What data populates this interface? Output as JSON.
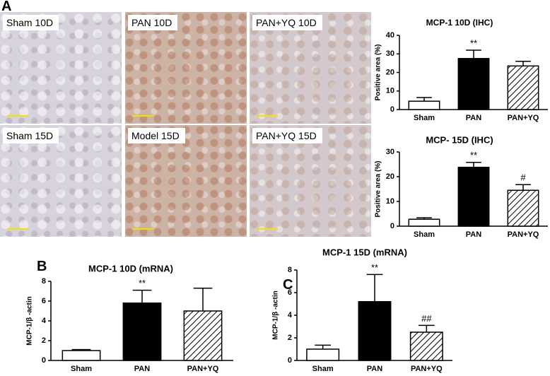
{
  "panel_labels": [
    "A",
    "B",
    "C"
  ],
  "micrographs": [
    "Sham 10D",
    "PAN 10D",
    "PAN+YQ 10D",
    "Sham 15D",
    "Model 15D",
    "PAN+YQ 15D"
  ],
  "chart_data": [
    {
      "type": "bar",
      "title": "MCP-1 10D (IHC)",
      "y_label": "Positive area (%)",
      "categories": [
        "Sham",
        "PAN",
        "PAN+YQ"
      ],
      "values": [
        4.5,
        27.5,
        23.5
      ],
      "errors": [
        2,
        4.5,
        2.5
      ],
      "colors": [
        "#ffffff",
        "#000000",
        "#ffffff"
      ],
      "hatch": [
        false,
        false,
        true
      ],
      "annotations": [
        {
          "category": "PAN",
          "text": "**"
        }
      ],
      "ylim": [
        0,
        40
      ],
      "yticks": [
        0,
        10,
        20,
        30,
        40
      ]
    },
    {
      "type": "bar",
      "title": "MCP- 15D (IHC)",
      "y_label": "Positive area (%)",
      "categories": [
        "Sham",
        "PAN",
        "PAN+YQ"
      ],
      "values": [
        2.8,
        23.8,
        14.5
      ],
      "errors": [
        0.6,
        2,
        2.3
      ],
      "colors": [
        "#ffffff",
        "#000000",
        "#ffffff"
      ],
      "hatch": [
        false,
        false,
        true
      ],
      "annotations": [
        {
          "category": "PAN",
          "text": "**"
        },
        {
          "category": "PAN+YQ",
          "text": "#"
        }
      ],
      "ylim": [
        0,
        30
      ],
      "yticks": [
        0,
        10,
        20,
        30
      ]
    },
    {
      "type": "bar",
      "title": "MCP-1 10D (mRNA)",
      "y_label": "MCP-1/β -actin",
      "categories": [
        "Sham",
        "PAN",
        "PAN+YQ"
      ],
      "values": [
        1.0,
        5.8,
        5.0
      ],
      "errors": [
        0.1,
        1.3,
        2.3
      ],
      "colors": [
        "#ffffff",
        "#000000",
        "#ffffff"
      ],
      "hatch": [
        false,
        false,
        true
      ],
      "annotations": [
        {
          "category": "PAN",
          "text": "**"
        }
      ],
      "ylim": [
        0,
        8
      ],
      "yticks": [
        0,
        2,
        4,
        6,
        8
      ]
    },
    {
      "type": "bar",
      "title": "MCP-1 15D (mRNA)",
      "y_label": "MCP-1/β -actin",
      "categories": [
        "Sham",
        "PAN",
        "PAN+YQ"
      ],
      "values": [
        1.0,
        5.2,
        2.5
      ],
      "errors": [
        0.35,
        2.4,
        0.6
      ],
      "colors": [
        "#ffffff",
        "#000000",
        "#ffffff"
      ],
      "hatch": [
        false,
        false,
        true
      ],
      "annotations": [
        {
          "category": "PAN",
          "text": "**"
        },
        {
          "category": "PAN+YQ",
          "text": "##"
        }
      ],
      "ylim": [
        0,
        8
      ],
      "yticks": [
        0,
        2,
        4,
        6,
        8
      ]
    }
  ]
}
